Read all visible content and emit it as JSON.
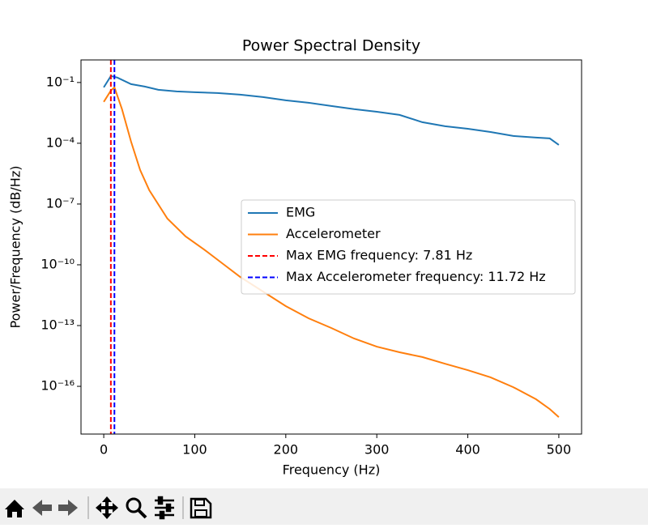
{
  "chart_data": {
    "type": "line",
    "title": "Power Spectral Density",
    "x_label": "Frequency (Hz)",
    "y_label": "Power/Frequency (dB/Hz)",
    "xlim": [
      -25,
      525
    ],
    "xticks": [
      0,
      100,
      200,
      300,
      400,
      500
    ],
    "ylim": [
      1.3,
      4.4e-19
    ],
    "y_log": true,
    "yticks": [
      {
        "value": 0.1,
        "label": "10⁻¹"
      },
      {
        "value": 0.0001,
        "label": "10⁻⁴"
      },
      {
        "value": 1e-07,
        "label": "10⁻⁷"
      },
      {
        "value": 1e-10,
        "label": "10⁻¹⁰"
      },
      {
        "value": 1e-13,
        "label": "10⁻¹³"
      },
      {
        "value": 1e-16,
        "label": "10⁻¹⁶"
      }
    ],
    "legend_position": "center right",
    "series": [
      {
        "name": "EMG",
        "color": "#1f77b4",
        "x": [
          0,
          7.81,
          15,
          30,
          45,
          60,
          80,
          100,
          125,
          150,
          175,
          200,
          225,
          250,
          275,
          300,
          325,
          350,
          375,
          400,
          425,
          450,
          475,
          490,
          500
        ],
        "values": [
          0.0575,
          0.209,
          0.174,
          0.083,
          0.063,
          0.0437,
          0.0363,
          0.0331,
          0.03,
          0.025,
          0.019,
          0.0132,
          0.01,
          0.0069,
          0.0048,
          0.0036,
          0.0025,
          0.0011,
          0.00069,
          0.00052,
          0.00036,
          0.00023,
          0.00019,
          0.000174,
          8.3e-05
        ]
      },
      {
        "name": "Accelerometer",
        "color": "#ff7f0e",
        "x": [
          0,
          7.81,
          11.72,
          20,
          30,
          40,
          50,
          70,
          90,
          110,
          130,
          150,
          175,
          200,
          225,
          250,
          275,
          300,
          325,
          350,
          375,
          400,
          425,
          450,
          475,
          490,
          500
        ],
        "values": [
          0.011,
          0.04,
          0.0575,
          0.0048,
          0.00012,
          4.8e-06,
          4.8e-07,
          1.9e-08,
          2.5e-09,
          5.8e-10,
          1.2e-10,
          2.5e-11,
          4.8e-12,
          9.1e-13,
          2.3e-13,
          7.6e-14,
          2.3e-14,
          9.1e-15,
          4.8e-15,
          2.8e-15,
          1.3e-15,
          6.3e-16,
          2.8e-16,
          9.1e-17,
          2.3e-17,
          7.6e-18,
          3e-18
        ]
      }
    ],
    "vlines": [
      {
        "name": "Max EMG frequency: 7.81 Hz",
        "color": "#ff0000",
        "x": 7.81
      },
      {
        "name": "Max Accelerometer frequency: 11.72 Hz",
        "color": "#0000ff",
        "x": 11.72
      }
    ]
  }
}
